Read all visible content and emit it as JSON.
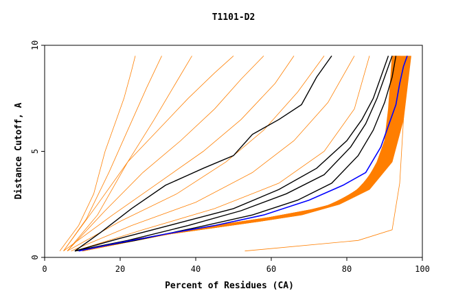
{
  "chart_data": {
    "type": "line",
    "title": "T1101-D2",
    "xlabel": "Percent of Residues (CA)",
    "ylabel": "Distance Cutoff, A",
    "xlim": [
      0,
      100
    ],
    "ylim": [
      0,
      10
    ],
    "xticks": [
      "0",
      "20",
      "40",
      "60",
      "80",
      "100"
    ],
    "yticks": [
      "0",
      "5",
      "10"
    ],
    "grid": false,
    "legend": "none",
    "colors": {
      "bundle": "#ff7f00",
      "highlight": "#000000",
      "reference": "#0000ff",
      "axes": "#000000"
    },
    "series": [
      {
        "role": "bundle-band-lower",
        "x": [
          10,
          30,
          45,
          60,
          72,
          80,
          85,
          88,
          90,
          91,
          92
        ],
        "y": [
          0.3,
          1.0,
          1.5,
          1.9,
          2.3,
          2.7,
          3.5,
          4.5,
          5.5,
          7.0,
          9.5
        ]
      },
      {
        "role": "bundle-band-upper",
        "x": [
          10,
          22,
          33,
          45,
          57,
          68,
          78,
          86,
          92,
          95,
          97
        ],
        "y": [
          0.3,
          0.8,
          1.1,
          1.4,
          1.7,
          2.0,
          2.5,
          3.2,
          4.5,
          6.5,
          9.5
        ]
      },
      {
        "role": "bundle-steep",
        "x": [
          4,
          9,
          13,
          16,
          19,
          21,
          23,
          24
        ],
        "y": [
          0.3,
          1.5,
          3.0,
          5.0,
          6.5,
          7.5,
          8.8,
          9.5
        ]
      },
      {
        "role": "bundle-steep",
        "x": [
          5,
          11,
          17,
          22,
          27,
          31
        ],
        "y": [
          0.3,
          1.8,
          4.0,
          6.0,
          8.0,
          9.5
        ]
      },
      {
        "role": "bundle-steep",
        "x": [
          6,
          14,
          22,
          29,
          35,
          39
        ],
        "y": [
          0.3,
          2.0,
          4.5,
          6.5,
          8.3,
          9.5
        ]
      },
      {
        "role": "bundle-mid",
        "x": [
          5,
          18,
          30,
          42,
          52,
          61,
          66
        ],
        "y": [
          0.3,
          2.0,
          3.5,
          5.0,
          6.5,
          8.2,
          9.5
        ]
      },
      {
        "role": "bundle-mid",
        "x": [
          6,
          20,
          35,
          48,
          58,
          67,
          74
        ],
        "y": [
          0.3,
          1.7,
          3.0,
          4.5,
          6.0,
          7.8,
          9.5
        ]
      },
      {
        "role": "bundle-mid",
        "x": [
          7,
          23,
          40,
          55,
          66,
          75,
          82
        ],
        "y": [
          0.3,
          1.5,
          2.6,
          4.0,
          5.5,
          7.3,
          9.5
        ]
      },
      {
        "role": "bundle-mid",
        "x": [
          8,
          26,
          45,
          62,
          74,
          82,
          86
        ],
        "y": [
          0.3,
          1.3,
          2.3,
          3.5,
          5.0,
          7.0,
          9.5
        ]
      },
      {
        "role": "bundle-mid",
        "x": [
          6,
          16,
          26,
          36,
          45,
          52,
          58
        ],
        "y": [
          0.3,
          2.2,
          4.0,
          5.5,
          7.0,
          8.4,
          9.5
        ]
      },
      {
        "role": "bundle-mid",
        "x": [
          5,
          14,
          22,
          30,
          38,
          45,
          50
        ],
        "y": [
          0.3,
          2.5,
          4.5,
          6.0,
          7.5,
          8.7,
          9.5
        ]
      },
      {
        "role": "bundle-outlier",
        "x": [
          53,
          83,
          92,
          94,
          95,
          96
        ],
        "y": [
          0.3,
          0.8,
          1.3,
          3.5,
          6.5,
          9.5
        ]
      },
      {
        "role": "highlight",
        "x": [
          8,
          15,
          23,
          32,
          42,
          50,
          55,
          62,
          68,
          72,
          76
        ],
        "y": [
          0.3,
          1.2,
          2.3,
          3.4,
          4.2,
          4.8,
          5.8,
          6.5,
          7.2,
          8.5,
          9.5
        ]
      },
      {
        "role": "highlight",
        "x": [
          8,
          20,
          35,
          50,
          62,
          72,
          80,
          84,
          87,
          89,
          91
        ],
        "y": [
          0.3,
          0.9,
          1.6,
          2.3,
          3.2,
          4.2,
          5.5,
          6.5,
          7.5,
          8.5,
          9.5
        ]
      },
      {
        "role": "highlight",
        "x": [
          8,
          22,
          38,
          52,
          64,
          74,
          81,
          85,
          88,
          90,
          92
        ],
        "y": [
          0.3,
          0.8,
          1.5,
          2.2,
          3.0,
          3.9,
          5.2,
          6.3,
          7.5,
          8.5,
          9.5
        ]
      },
      {
        "role": "highlight",
        "x": [
          8,
          24,
          40,
          55,
          67,
          76,
          83,
          87,
          90,
          92,
          93
        ],
        "y": [
          0.3,
          0.8,
          1.4,
          2.0,
          2.7,
          3.5,
          4.8,
          6.0,
          7.3,
          8.5,
          9.5
        ]
      },
      {
        "role": "reference",
        "x": [
          9,
          20,
          32,
          45,
          58,
          70,
          79,
          85,
          89,
          91,
          93,
          94,
          95,
          96
        ],
        "y": [
          0.3,
          0.7,
          1.1,
          1.5,
          2.0,
          2.7,
          3.4,
          4.0,
          5.2,
          6.2,
          7.2,
          8.2,
          9.0,
          9.5
        ]
      }
    ]
  }
}
